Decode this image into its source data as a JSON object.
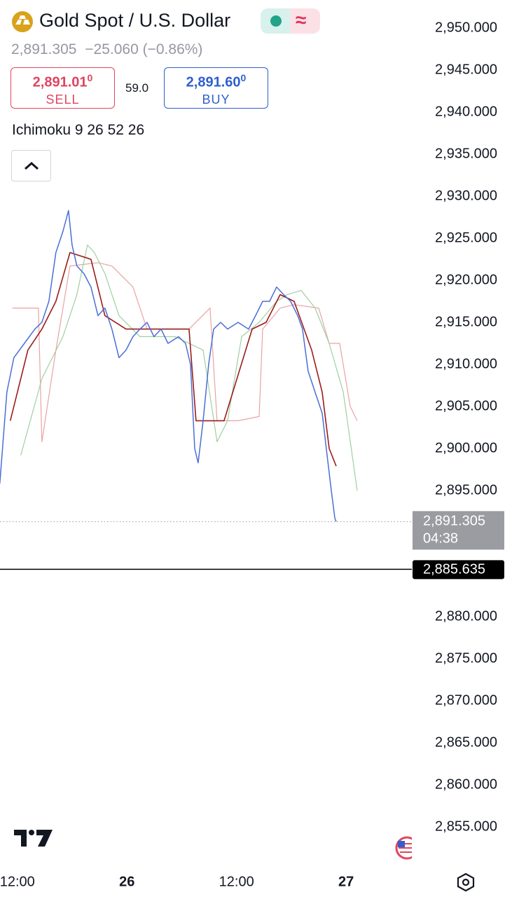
{
  "header": {
    "symbol": "Gold Spot / U.S. Dollar",
    "price": "2,891.305",
    "change": "−25.060",
    "change_pct": "(−0.86%)",
    "sell": {
      "price": "2,891.01",
      "sup": "0",
      "label": "SELL"
    },
    "spread": "59.0",
    "buy": {
      "price": "2,891.60",
      "sup": "0",
      "label": "BUY"
    },
    "indicator": "Ichimoku 9 26 52 26"
  },
  "chart_data": {
    "type": "line",
    "xlim": [
      10.1,
      55.2
    ],
    "ylim": [
      2851,
      2953
    ],
    "xticks": [
      {
        "value": 12,
        "label": "12:00"
      },
      {
        "value": 24,
        "label": "26"
      },
      {
        "value": 36,
        "label": "12:00"
      },
      {
        "value": 48,
        "label": "27"
      }
    ],
    "yticks": [
      {
        "value": 2950,
        "label": "2,950.000"
      },
      {
        "value": 2945,
        "label": "2,945.000"
      },
      {
        "value": 2940,
        "label": "2,940.000"
      },
      {
        "value": 2935,
        "label": "2,935.000"
      },
      {
        "value": 2930,
        "label": "2,930.000"
      },
      {
        "value": 2925,
        "label": "2,925.000"
      },
      {
        "value": 2920,
        "label": "2,920.000"
      },
      {
        "value": 2915,
        "label": "2,915.000"
      },
      {
        "value": 2910,
        "label": "2,910.000"
      },
      {
        "value": 2905,
        "label": "2,905.000"
      },
      {
        "value": 2900,
        "label": "2,900.000"
      },
      {
        "value": 2895,
        "label": "2,895.000"
      },
      {
        "value": 2880,
        "label": "2,880.000"
      },
      {
        "value": 2875,
        "label": "2,875.000"
      },
      {
        "value": 2870,
        "label": "2,870.000"
      },
      {
        "value": 2865,
        "label": "2,865.000"
      },
      {
        "value": 2860,
        "label": "2,860.000"
      },
      {
        "value": 2855,
        "label": "2,855.000"
      }
    ],
    "series": [
      {
        "color": "#e9a3a3",
        "width": 1.2,
        "x": [
          11.46,
          14.3,
          14.69,
          16.22,
          17.76,
          20.83,
          22.36,
          24.66,
          26.2,
          30.8,
          33.1,
          33.87,
          36.17,
          38.48,
          38.86,
          40.78,
          42.31,
          45,
          46.15,
          47.3,
          48.45,
          49.22
        ],
        "values": [
          2916.7,
          2916.7,
          2900.8,
          2911.7,
          2921.7,
          2922.1,
          2921.7,
          2919.2,
          2914.2,
          2914.2,
          2916.7,
          2903.3,
          2903.3,
          2903.8,
          2914.2,
          2916.7,
          2917.1,
          2916.7,
          2912.5,
          2912.5,
          2905,
          2903.3
        ]
      },
      {
        "color": "#9fd09f",
        "width": 1.2,
        "x": [
          12.38,
          14.69,
          16.99,
          18.52,
          19.67,
          20.44,
          21.59,
          23.13,
          25.43,
          29.27,
          32.34,
          33.87,
          35.02,
          36.56,
          38.48,
          40.39,
          41.55,
          43.08,
          44.61,
          46.15,
          47.69,
          49.22
        ],
        "values": [
          2899.2,
          2908.3,
          2913.3,
          2918.3,
          2924.2,
          2923.3,
          2920.8,
          2915.8,
          2913.3,
          2913.3,
          2911.7,
          2900.8,
          2903.3,
          2913.3,
          2915,
          2917.5,
          2918.3,
          2918.8,
          2916.7,
          2912.5,
          2906.7,
          2895
        ]
      },
      {
        "color": "#9b1c1c",
        "width": 1.6,
        "x": [
          11.23,
          13.15,
          14.69,
          16.22,
          17.76,
          20.06,
          21.59,
          23.9,
          30.8,
          31.57,
          34.64,
          37.71,
          39.24,
          40.78,
          42.31,
          44.23,
          45.38,
          46.15,
          46.92
        ],
        "values": [
          2903.3,
          2911.7,
          2914.2,
          2917.5,
          2923.3,
          2922.5,
          2915.8,
          2914.2,
          2914.2,
          2903.3,
          2903.3,
          2914.2,
          2915,
          2918.3,
          2917.5,
          2911.7,
          2906.7,
          2900,
          2897.9
        ]
      },
      {
        "color": "#4a6fd6",
        "width": 1.5,
        "x": [
          10.08,
          10.85,
          11.62,
          12.77,
          13.92,
          14.69,
          15.45,
          16.22,
          16.99,
          17.6,
          17.99,
          18.52,
          19.29,
          20.06,
          20.83,
          21.59,
          22.36,
          23.13,
          23.9,
          24.66,
          25.43,
          26.2,
          26.97,
          27.73,
          28.5,
          29.65,
          30.42,
          30.96,
          31.42,
          31.8,
          32.34,
          32.95,
          33.49,
          34.26,
          35.02,
          36.17,
          37.32,
          38.09,
          38.86,
          39.62,
          40.39,
          41.16,
          41.92,
          42.7,
          43.23,
          43.84,
          44.61,
          45.38,
          45.92,
          46.38,
          46.77,
          46.92
        ],
        "values": [
          2895.8,
          2906.7,
          2910.8,
          2912.5,
          2914.2,
          2915,
          2917.5,
          2923.3,
          2925.8,
          2928.3,
          2924.2,
          2921.7,
          2920.8,
          2919.2,
          2915.8,
          2916.7,
          2914.2,
          2910.8,
          2911.7,
          2913.3,
          2914.2,
          2915,
          2913.3,
          2914.2,
          2912.5,
          2913.3,
          2912.5,
          2910,
          2900,
          2898.3,
          2903.3,
          2910,
          2914.2,
          2915,
          2914.2,
          2915,
          2914.2,
          2915.8,
          2917.5,
          2917.5,
          2919.2,
          2918.3,
          2917.5,
          2915.8,
          2914.2,
          2909.2,
          2906.7,
          2904.2,
          2899.2,
          2895,
          2891.7,
          2891.3
        ]
      }
    ],
    "price_line": {
      "value": 2891.305,
      "label": "2,891.305",
      "countdown": "04:38"
    },
    "level_line": {
      "value": 2885.635,
      "label": "2,885.635"
    }
  }
}
